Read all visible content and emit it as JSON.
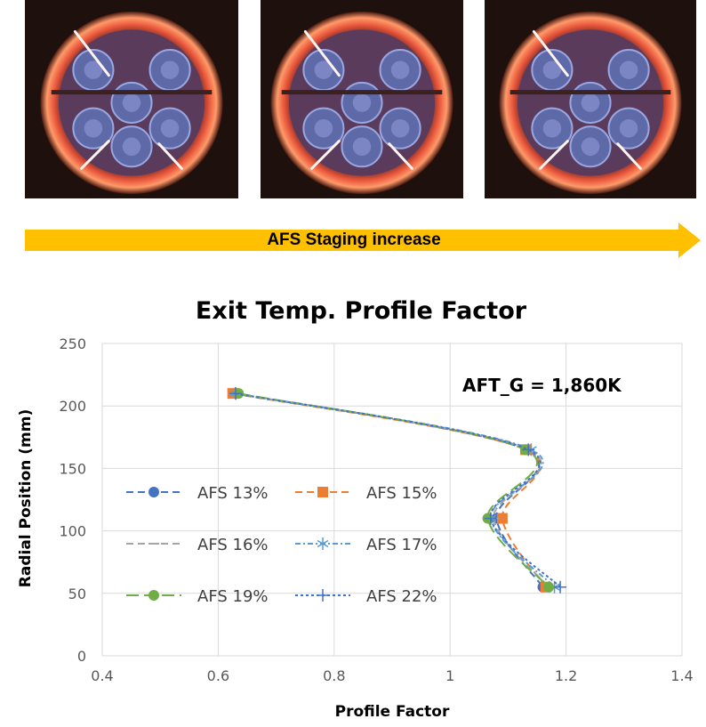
{
  "photos": {
    "items": [
      {
        "label": "flame-image-low-staging"
      },
      {
        "label": "flame-image-mid-staging"
      },
      {
        "label": "flame-image-high-staging"
      }
    ]
  },
  "arrow": {
    "label": "AFS Staging increase",
    "color": "#FFC000"
  },
  "chart_data": {
    "type": "line",
    "title": "Exit Temp. Profile Factor",
    "xlabel": "Profile Factor",
    "ylabel": "Radial Position (mm)",
    "xlim": [
      0.4,
      1.4
    ],
    "ylim": [
      0,
      250
    ],
    "xticks": [
      "0.4",
      "0.6",
      "0.8",
      "1",
      "1.2",
      "1.4"
    ],
    "yticks": [
      "0",
      "50",
      "100",
      "150",
      "200",
      "250"
    ],
    "grid": true,
    "annotation": "AFT_G = 1,860K",
    "legend_position": "left-center",
    "series": [
      {
        "name": "AFS 13%",
        "color": "#4472C4",
        "marker": "circle",
        "dash": "8,5",
        "points": [
          [
            0.63,
            210
          ],
          [
            1.13,
            165
          ],
          [
            1.08,
            110
          ],
          [
            1.16,
            55
          ]
        ]
      },
      {
        "name": "AFS 15%",
        "color": "#ED7D31",
        "marker": "square",
        "dash": "8,5",
        "points": [
          [
            0.625,
            210
          ],
          [
            1.13,
            165
          ],
          [
            1.09,
            110
          ],
          [
            1.165,
            55
          ]
        ]
      },
      {
        "name": "AFS 16%",
        "color": "#A5A5A5",
        "marker": "dash",
        "dash": "8,5",
        "points": [
          [
            0.63,
            210
          ],
          [
            1.135,
            165
          ],
          [
            1.075,
            110
          ],
          [
            1.17,
            55
          ]
        ]
      },
      {
        "name": "AFS 17%",
        "color": "#5B9BD5",
        "marker": "asterisk",
        "dash": "6,3,2,3",
        "points": [
          [
            0.63,
            210
          ],
          [
            1.14,
            165
          ],
          [
            1.07,
            110
          ],
          [
            1.18,
            55
          ]
        ]
      },
      {
        "name": "AFS 19%",
        "color": "#70AD47",
        "marker": "circle",
        "dash": "14,6",
        "points": [
          [
            0.635,
            210
          ],
          [
            1.13,
            165
          ],
          [
            1.065,
            110
          ],
          [
            1.17,
            55
          ]
        ]
      },
      {
        "name": "AFS 22%",
        "color": "#4472C4",
        "marker": "plus",
        "dash": "3,3",
        "points": [
          [
            0.63,
            210
          ],
          [
            1.135,
            165
          ],
          [
            1.07,
            110
          ],
          [
            1.19,
            55
          ]
        ]
      }
    ]
  }
}
